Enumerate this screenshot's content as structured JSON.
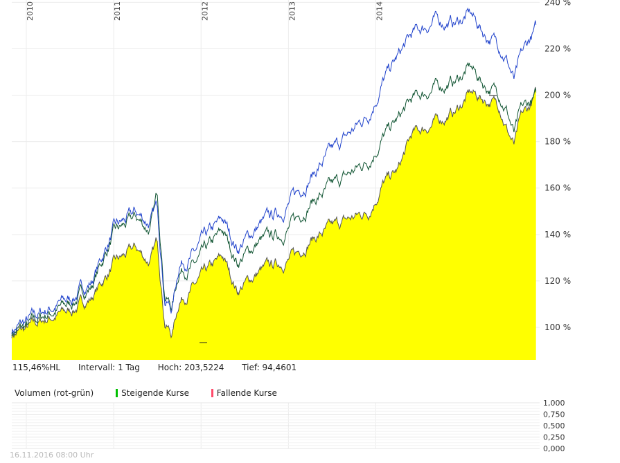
{
  "info": {
    "indicator": "115,46%HL",
    "interval": "Intervall: 1 Tag",
    "high": "Hoch: 203,5224",
    "low": "Tief: 94,4601"
  },
  "volume": {
    "label": "Volumen (rot-grün)",
    "rising_label": "Steigende Kurse",
    "falling_label": "Fallende Kurse",
    "rising_color": "#00c000",
    "falling_color": "#ff4a6a",
    "y_ticks": [
      "1,000",
      "0,750",
      "0,500",
      "0,250",
      "0,000"
    ]
  },
  "timestamp": "16.11.2016 08:00 Uhr",
  "chart_data": {
    "type": "area",
    "title": "",
    "xlabel": "",
    "ylabel": "",
    "x_ticks": [
      "2010",
      "2011",
      "2012",
      "2013",
      "2014"
    ],
    "y_ticks": [
      "240 %",
      "220 %",
      "200 %",
      "180 %",
      "160 %",
      "140 %",
      "120 %",
      "100 %"
    ],
    "y_tick_values": [
      240,
      220,
      200,
      180,
      160,
      140,
      120,
      100
    ],
    "ylim": [
      86,
      241
    ],
    "grid": true,
    "colors": {
      "area_fill": "#ffff00",
      "area_line": "#555555",
      "series_blue": "#2244cc",
      "series_green": "#115533"
    },
    "x": [
      "2009-11",
      "2010-01",
      "2010-04",
      "2010-07",
      "2010-10",
      "2011-01",
      "2011-04",
      "2011-06",
      "2011-07",
      "2011-08",
      "2011-09",
      "2011-10",
      "2011-12",
      "2012-01",
      "2012-04",
      "2012-06",
      "2012-09",
      "2012-12",
      "2013-02",
      "2013-04",
      "2013-06",
      "2013-09",
      "2013-12",
      "2014-02",
      "2014-04",
      "2014-06",
      "2014-09",
      "2014-12",
      "2015-02",
      "2015-04",
      "2015-06",
      "2015-07",
      "2015-08",
      "2015-09",
      "2015-10",
      "2015-11"
    ],
    "series": [
      {
        "role": "area",
        "values": [
          97,
          99,
          104,
          107,
          113,
          127,
          134,
          128,
          137,
          103,
          97,
          112,
          117,
          121,
          130,
          116,
          124,
          128,
          131,
          138,
          141,
          146,
          150,
          162,
          167,
          183,
          188,
          193,
          201,
          198,
          196,
          186,
          178,
          190,
          194,
          200
        ]
      },
      {
        "role": "blue",
        "values": [
          99,
          102,
          108,
          112,
          120,
          142,
          149,
          145,
          152,
          113,
          108,
          128,
          131,
          136,
          146,
          134,
          144,
          150,
          157,
          165,
          172,
          182,
          192,
          206,
          216,
          226,
          232,
          231,
          235,
          226,
          222,
          216,
          206,
          216,
          223,
          228
        ]
      },
      {
        "role": "green",
        "values": [
          98,
          100,
          106,
          110,
          118,
          140,
          147,
          142,
          157,
          115,
          109,
          125,
          126,
          130,
          141,
          128,
          137,
          140,
          146,
          154,
          158,
          165,
          172,
          182,
          189,
          198,
          203,
          206,
          212,
          204,
          201,
          194,
          183,
          193,
          196,
          199
        ]
      }
    ]
  }
}
